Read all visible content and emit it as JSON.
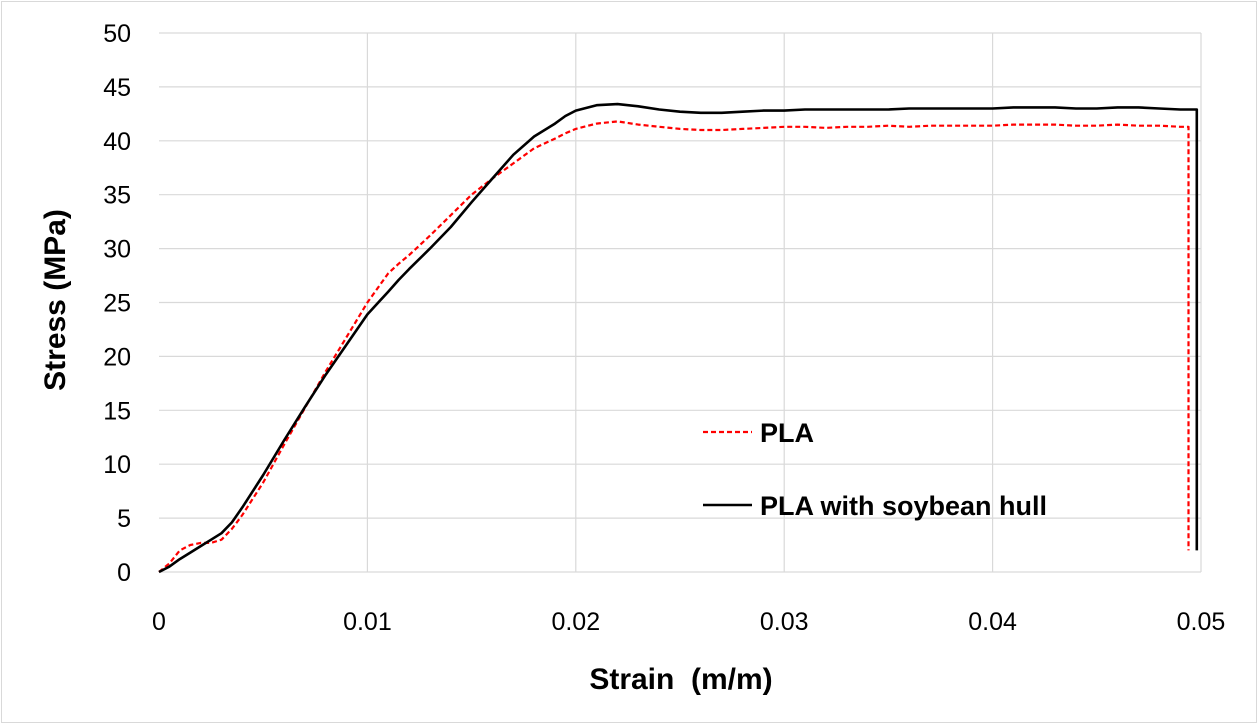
{
  "chart_data": {
    "type": "line",
    "title": "",
    "xlabel": "Strain  (m/m)",
    "ylabel": "Stress (MPa)",
    "xlim": [
      0,
      0.05
    ],
    "ylim": [
      0,
      50
    ],
    "x_ticks": [
      "0",
      "0.01",
      "0.02",
      "0.03",
      "0.04",
      "0.05"
    ],
    "y_ticks": [
      "0",
      "5",
      "10",
      "15",
      "20",
      "25",
      "30",
      "35",
      "40",
      "45",
      "50"
    ],
    "grid": "vertical and horizontal",
    "legend_position": "inside lower-right",
    "series": [
      {
        "name": "PLA",
        "color": "#ff0000",
        "style": "dashed",
        "x": [
          0,
          0.0005,
          0.001,
          0.0015,
          0.002,
          0.0025,
          0.003,
          0.0035,
          0.004,
          0.005,
          0.006,
          0.007,
          0.008,
          0.009,
          0.01,
          0.011,
          0.0115,
          0.012,
          0.013,
          0.014,
          0.015,
          0.016,
          0.017,
          0.018,
          0.019,
          0.0195,
          0.02,
          0.021,
          0.022,
          0.023,
          0.024,
          0.025,
          0.026,
          0.027,
          0.028,
          0.029,
          0.03,
          0.031,
          0.032,
          0.033,
          0.034,
          0.035,
          0.036,
          0.037,
          0.038,
          0.039,
          0.04,
          0.041,
          0.042,
          0.043,
          0.044,
          0.045,
          0.046,
          0.047,
          0.048,
          0.049,
          0.0494,
          0.0494
        ],
        "y": [
          0,
          0.8,
          2.0,
          2.5,
          2.7,
          2.7,
          3.0,
          4.0,
          5.3,
          8.3,
          11.8,
          15.2,
          18.6,
          21.8,
          25.0,
          27.7,
          28.6,
          29.4,
          31.2,
          33.1,
          35.0,
          36.5,
          37.9,
          39.3,
          40.2,
          40.7,
          41.1,
          41.6,
          41.8,
          41.5,
          41.3,
          41.1,
          41.0,
          41.0,
          41.1,
          41.2,
          41.3,
          41.3,
          41.2,
          41.3,
          41.3,
          41.4,
          41.3,
          41.4,
          41.4,
          41.4,
          41.4,
          41.5,
          41.5,
          41.5,
          41.4,
          41.4,
          41.5,
          41.4,
          41.4,
          41.3,
          41.3,
          2
        ]
      },
      {
        "name": "PLA with soybean hull",
        "color": "#000000",
        "style": "solid",
        "x": [
          0,
          0.0005,
          0.001,
          0.0015,
          0.002,
          0.0025,
          0.003,
          0.0035,
          0.004,
          0.005,
          0.006,
          0.007,
          0.008,
          0.009,
          0.01,
          0.011,
          0.0115,
          0.012,
          0.013,
          0.014,
          0.015,
          0.016,
          0.017,
          0.018,
          0.019,
          0.0195,
          0.02,
          0.021,
          0.022,
          0.023,
          0.024,
          0.025,
          0.026,
          0.027,
          0.028,
          0.029,
          0.03,
          0.031,
          0.032,
          0.033,
          0.034,
          0.035,
          0.036,
          0.037,
          0.038,
          0.039,
          0.04,
          0.041,
          0.042,
          0.043,
          0.044,
          0.045,
          0.046,
          0.047,
          0.048,
          0.049,
          0.0498,
          0.0498
        ],
        "y": [
          0,
          0.5,
          1.2,
          1.8,
          2.4,
          3.0,
          3.6,
          4.6,
          6.0,
          9.0,
          12.2,
          15.3,
          18.3,
          21.1,
          23.9,
          26.0,
          27.1,
          28.1,
          30.0,
          32.0,
          34.3,
          36.5,
          38.7,
          40.4,
          41.6,
          42.3,
          42.8,
          43.3,
          43.4,
          43.2,
          42.9,
          42.7,
          42.6,
          42.6,
          42.7,
          42.8,
          42.8,
          42.9,
          42.9,
          42.9,
          42.9,
          42.9,
          43.0,
          43.0,
          43.0,
          43.0,
          43.0,
          43.1,
          43.1,
          43.1,
          43.0,
          43.0,
          43.1,
          43.1,
          43.0,
          42.9,
          42.9,
          2
        ]
      }
    ]
  }
}
